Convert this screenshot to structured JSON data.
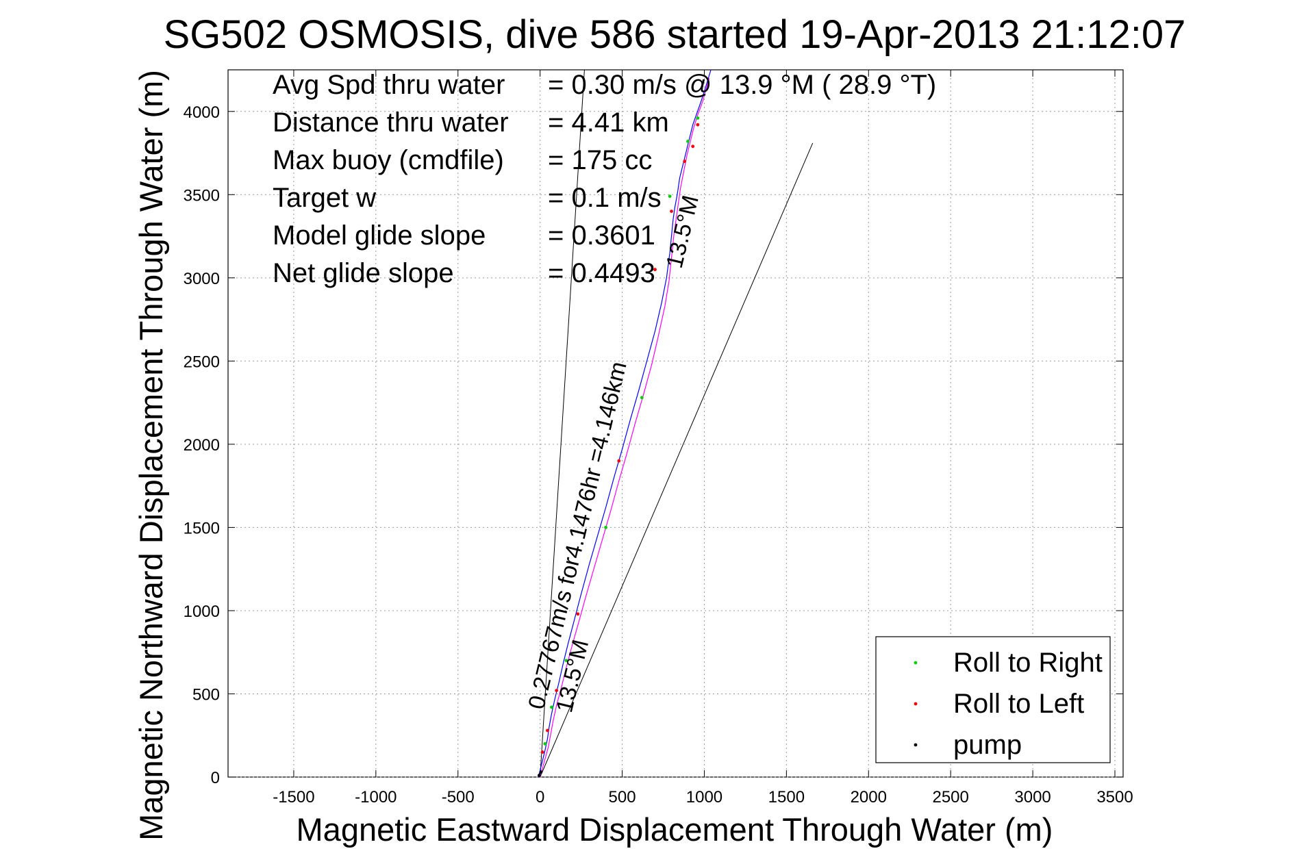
{
  "chart_data": {
    "type": "scatter",
    "title": "SG502 OSMOSIS, dive 586 started 19-Apr-2013 21:12:07",
    "xlabel": "Magnetic Eastward Displacement Through Water (m)",
    "ylabel": "Magnetic Northward Displacement Through Water (m)",
    "xlim": [
      -1900,
      3550
    ],
    "ylim": [
      0,
      4250
    ],
    "xticks": [
      -1500,
      -1000,
      -500,
      0,
      500,
      1000,
      1500,
      2000,
      2500,
      3000,
      3500
    ],
    "yticks": [
      0,
      500,
      1000,
      1500,
      2000,
      2500,
      3000,
      3500,
      4000
    ],
    "grid": true,
    "legend_position": "bottom-right",
    "info_rows": [
      {
        "label": "Avg Spd thru water",
        "value": "=  0.30 m/s @  13.9 °M ( 28.9 °T)"
      },
      {
        "label": "Distance thru water",
        "value": "=  4.41 km"
      },
      {
        "label": "Max buoy (cmdfile)",
        "value": "= 175 cc"
      },
      {
        "label": "Target w",
        "value": "= 0.1 m/s"
      },
      {
        "label": "Model glide slope",
        "value": "= 0.3601"
      },
      {
        "label": "Net glide slope",
        "value": "= 0.4493"
      }
    ],
    "annotations": [
      {
        "text": "0.27767m/s for4.1476hr =4.146km",
        "x": 20,
        "y": 400,
        "angle_deg": 13.5
      },
      {
        "text": "13.5°M",
        "x": 860,
        "y": 3050,
        "angle_deg": 13.5
      },
      {
        "text": "13.5°M",
        "x": 190,
        "y": 380,
        "angle_deg": 13.5
      }
    ],
    "reference_lines": [
      {
        "name": "heading bound left",
        "x": [
          0,
          270
        ],
        "y": [
          0,
          4250
        ]
      },
      {
        "name": "heading bound right",
        "x": [
          0,
          1660
        ],
        "y": [
          0,
          3810
        ]
      }
    ],
    "series": [
      {
        "name": "track (blue)",
        "color": "#0000ff",
        "x": [
          -10,
          10,
          30,
          45,
          55,
          70,
          90,
          115,
          140,
          170,
          210,
          250,
          300,
          350,
          400,
          450,
          500,
          550,
          600,
          650,
          700,
          740,
          770,
          790,
          800,
          810,
          820,
          835,
          850,
          870,
          890,
          910,
          930,
          955,
          980,
          1000,
          1040
        ],
        "y": [
          0,
          80,
          160,
          230,
          300,
          380,
          470,
          570,
          680,
          800,
          950,
          1100,
          1280,
          1450,
          1620,
          1800,
          1970,
          2150,
          2320,
          2500,
          2680,
          2850,
          3000,
          3150,
          3250,
          3350,
          3420,
          3500,
          3600,
          3680,
          3760,
          3840,
          3920,
          3990,
          4060,
          4120,
          4250
        ]
      },
      {
        "name": "track (magenta)",
        "color": "#ff00ff",
        "x": [
          0,
          25,
          50,
          65,
          80,
          100,
          130,
          160,
          195,
          235,
          280,
          330,
          380,
          430,
          480,
          530,
          580,
          630,
          680,
          720,
          760,
          785,
          800,
          815,
          835,
          855,
          875,
          895,
          915,
          935,
          960,
          990,
          1030
        ],
        "y": [
          0,
          90,
          180,
          260,
          340,
          430,
          540,
          660,
          790,
          930,
          1090,
          1260,
          1430,
          1600,
          1780,
          1950,
          2130,
          2300,
          2480,
          2650,
          2830,
          2980,
          3120,
          3260,
          3400,
          3540,
          3640,
          3740,
          3820,
          3900,
          3980,
          4060,
          4200
        ]
      },
      {
        "name": "Roll to Right",
        "color": "#00d000",
        "x": [
          30,
          70,
          160,
          400,
          620,
          790,
          900,
          960
        ],
        "y": [
          200,
          420,
          700,
          1500,
          2280,
          3490,
          3820,
          3960
        ]
      },
      {
        "name": "Roll to Left",
        "color": "#ff0000",
        "x": [
          15,
          45,
          100,
          230,
          480,
          700,
          800,
          880,
          930,
          960
        ],
        "y": [
          150,
          280,
          520,
          980,
          1900,
          3050,
          3400,
          3700,
          3790,
          3920
        ]
      },
      {
        "name": "pump",
        "color": "#000000",
        "x": [
          -5,
          5
        ],
        "y": [
          10,
          30
        ]
      }
    ],
    "legend": [
      "Roll to Right",
      "Roll to Left",
      "pump"
    ]
  }
}
